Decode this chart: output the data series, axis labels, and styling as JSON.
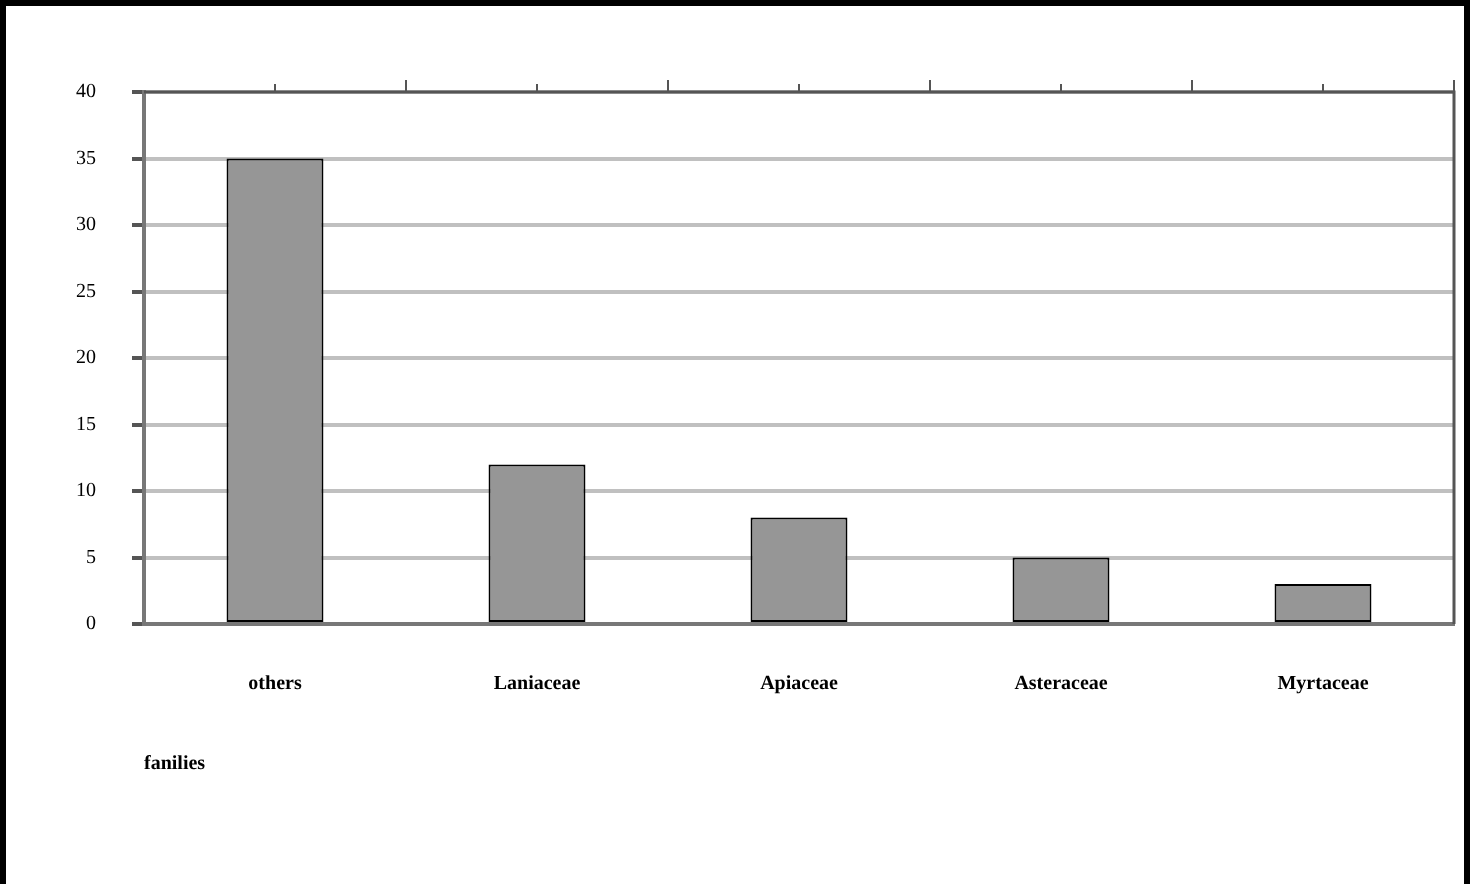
{
  "chart_data": {
    "type": "bar",
    "xlabel": "fanilies",
    "categories": [
      "others",
      "Laniaceae",
      "Apiaceae",
      "Asteraceae",
      "Myrtaceae"
    ],
    "values": [
      35,
      12,
      8,
      5,
      3
    ],
    "color": "#969696",
    "ylim": [
      0,
      40
    ],
    "yticks": [
      0,
      5,
      10,
      15,
      20,
      25,
      30,
      35,
      40
    ],
    "grid": "y"
  }
}
